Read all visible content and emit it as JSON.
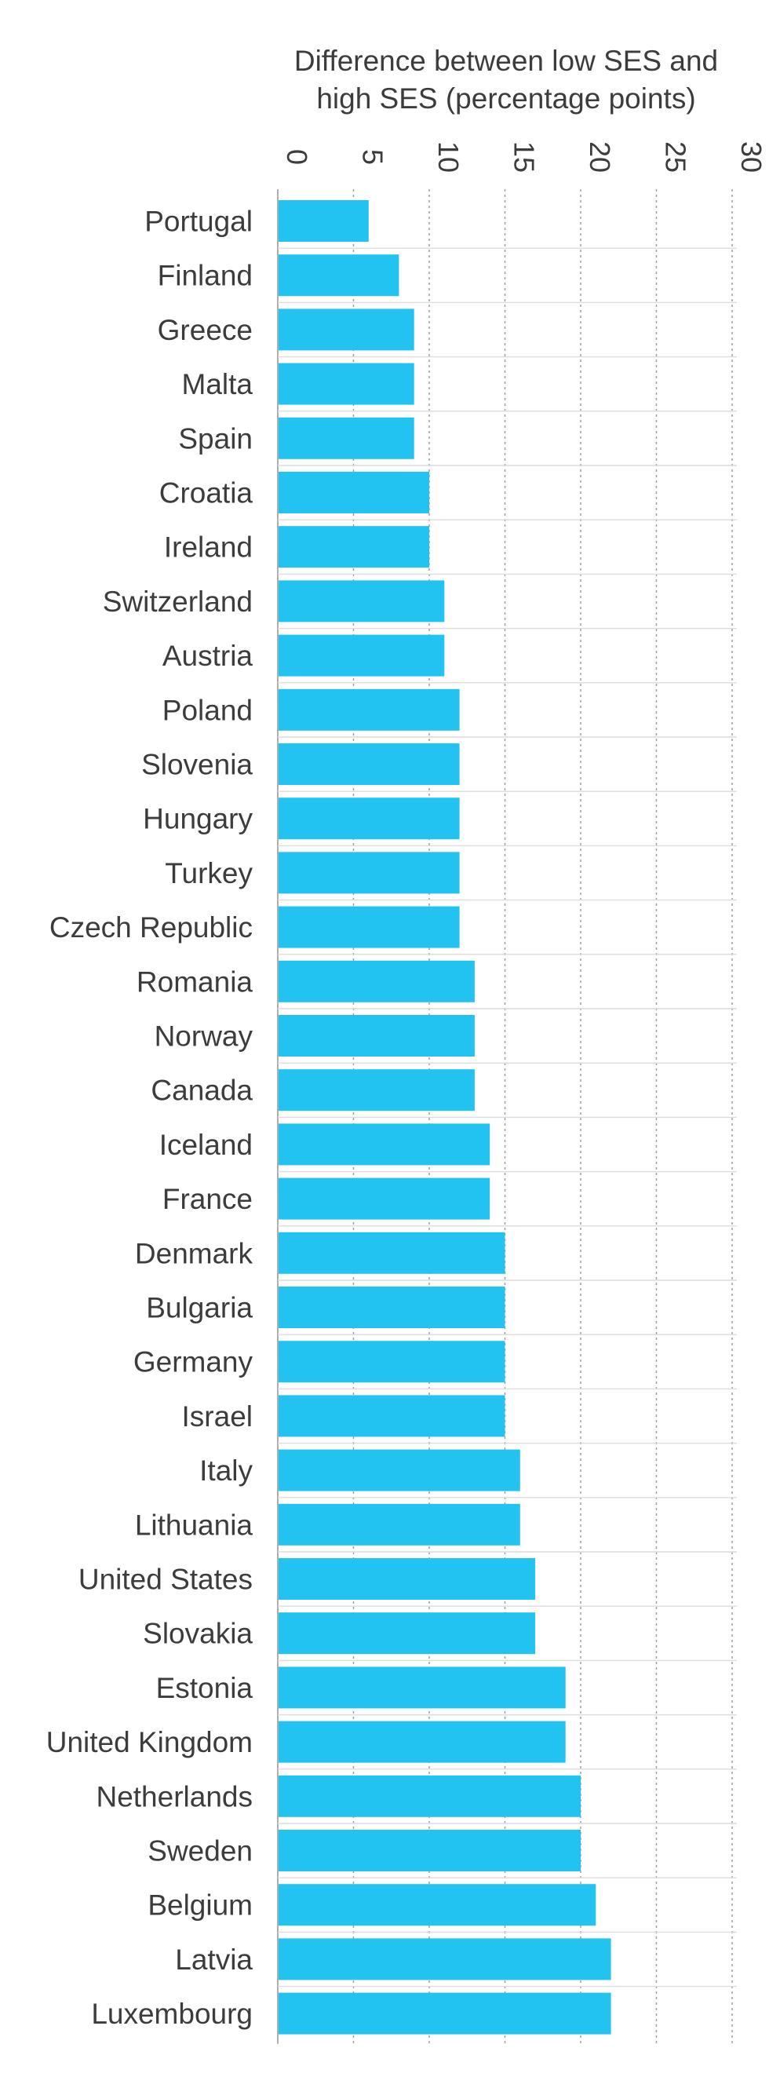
{
  "chart_data": {
    "type": "bar",
    "orientation": "horizontal",
    "title": "Difference between low SES and high SES (percentage points)",
    "title_lines": [
      "Difference between low SES and",
      "high SES (percentage points)"
    ],
    "xlim": [
      0,
      30
    ],
    "xticks": [
      "0",
      "5",
      "10",
      "15",
      "20",
      "25",
      "30"
    ],
    "grid": true,
    "categories": [
      "Portugal",
      "Finland",
      "Greece",
      "Malta",
      "Spain",
      "Croatia",
      "Ireland",
      "Switzerland",
      "Austria",
      "Poland",
      "Slovenia",
      "Hungary",
      "Turkey",
      "Czech Republic",
      "Romania",
      "Norway",
      "Canada",
      "Iceland",
      "France",
      "Denmark",
      "Bulgaria",
      "Germany",
      "Israel",
      "Italy",
      "Lithuania",
      "United States",
      "Slovakia",
      "Estonia",
      "United Kingdom",
      "Netherlands",
      "Sweden",
      "Belgium",
      "Latvia",
      "Luxembourg"
    ],
    "values": [
      6,
      8,
      9,
      9,
      9,
      10,
      10,
      11,
      11,
      12,
      12,
      12,
      12,
      12,
      13,
      13,
      13,
      14,
      14,
      15,
      15,
      15,
      15,
      16,
      16,
      17,
      17,
      19,
      19,
      20,
      20,
      21,
      22,
      22
    ],
    "bar_color": "#22c3f0"
  }
}
